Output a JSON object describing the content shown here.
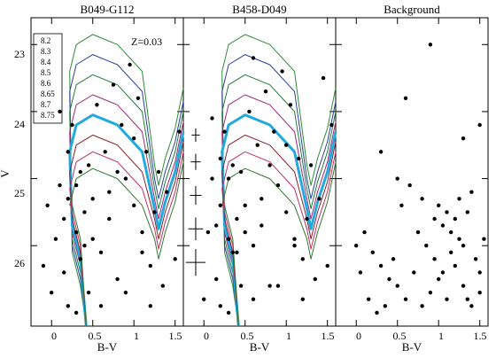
{
  "chart_data": [
    {
      "type": "scatter",
      "title": "B049-G112",
      "xlabel": "B-V",
      "ylabel": "V",
      "xlim": [
        -0.25,
        1.6
      ],
      "ylim": [
        27.2,
        22.6
      ],
      "xticks": [
        0,
        0.5,
        1,
        1.5
      ],
      "xtick_labels": [
        "0",
        "0.5",
        "1",
        "1.5"
      ],
      "yticks": [
        23,
        24,
        25,
        26
      ],
      "ytick_labels": [
        "23",
        "24",
        "25",
        "26"
      ],
      "annotation": "Z=0.03",
      "legend_title": "",
      "legend_entries": [
        "8.2",
        "8.3",
        "8.4",
        "8.5",
        "8.6",
        "8.65",
        "8.7",
        "8.75"
      ],
      "legend_position": "top-left",
      "isochrones": [
        {
          "name": "8.2",
          "color": "#2e8b3a",
          "to": 22.85,
          "rgb": 24.55,
          "red": 26.6
        },
        {
          "name": "8.3",
          "color": "#2a3f9a",
          "to": 23.15,
          "rgb": 24.75,
          "red": 26.5
        },
        {
          "name": "8.4",
          "color": "#1f7a3d",
          "to": 23.45,
          "rgb": 24.9,
          "red": 26.4
        },
        {
          "name": "8.5",
          "color": "#a0287a",
          "to": 23.75,
          "rgb": 25.05,
          "red": 26.3
        },
        {
          "name": "8.6",
          "color": "#22aadd",
          "to": 24.05,
          "rgb": 25.2,
          "red": 26.2,
          "thick": true
        },
        {
          "name": "8.65",
          "color": "#8a1f2a",
          "to": 24.35,
          "rgb": 25.35,
          "red": 26.1
        },
        {
          "name": "8.7",
          "color": "#c03060",
          "to": 24.6,
          "rgb": 25.5,
          "red": 26.0
        },
        {
          "name": "8.75",
          "color": "#2f7a2f",
          "to": 24.85,
          "rgb": 25.65,
          "red": 25.9
        }
      ],
      "points": [
        [
          0.1,
          25.1
        ],
        [
          0.2,
          24.6
        ],
        [
          0.3,
          25.8
        ],
        [
          0.35,
          26.2
        ],
        [
          0.4,
          25.5
        ],
        [
          0.15,
          26.4
        ],
        [
          0.05,
          25.9
        ],
        [
          0.45,
          24.8
        ],
        [
          0.5,
          25.3
        ],
        [
          0.6,
          26.1
        ],
        [
          0.7,
          25.6
        ],
        [
          0.8,
          26.5
        ],
        [
          0.9,
          25.0
        ],
        [
          1.0,
          24.4
        ],
        [
          1.1,
          25.8
        ],
        [
          1.2,
          26.3
        ],
        [
          1.3,
          24.9
        ],
        [
          1.4,
          25.2
        ],
        [
          0.25,
          24.2
        ],
        [
          0.35,
          24.9
        ],
        [
          0.55,
          23.9
        ],
        [
          0.65,
          24.6
        ],
        [
          0.75,
          23.6
        ],
        [
          0.85,
          24.2
        ],
        [
          0.95,
          23.3
        ],
        [
          1.05,
          23.8
        ],
        [
          1.15,
          24.6
        ],
        [
          1.25,
          25.5
        ],
        [
          0.0,
          26.7
        ],
        [
          -0.1,
          26.3
        ],
        [
          0.2,
          26.9
        ],
        [
          0.3,
          27.0
        ],
        [
          0.45,
          26.7
        ],
        [
          0.6,
          26.9
        ],
        [
          0.9,
          26.7
        ],
        [
          1.2,
          26.9
        ],
        [
          1.5,
          26.2
        ],
        [
          1.55,
          24.3
        ],
        [
          0.1,
          24.0
        ],
        [
          0.2,
          25.3
        ],
        [
          0.3,
          25.1
        ],
        [
          0.4,
          26.0
        ],
        [
          0.5,
          25.9
        ],
        [
          0.7,
          25.2
        ],
        [
          0.8,
          24.9
        ],
        [
          1.0,
          25.4
        ],
        [
          1.1,
          26.1
        ],
        [
          1.35,
          26.6
        ],
        [
          -0.05,
          25.4
        ],
        [
          0.15,
          25.6
        ]
      ]
    },
    {
      "type": "scatter",
      "title": "B458-D049",
      "xlabel": "B-V",
      "xlim": [
        -0.25,
        1.6
      ],
      "ylim": [
        27.2,
        22.6
      ],
      "xticks": [
        0,
        0.5,
        1,
        1.5
      ],
      "xtick_labels": [
        "0",
        "0.5",
        "1",
        "1.5"
      ],
      "yticks": [
        23,
        24,
        25,
        26
      ],
      "error_bars": [
        {
          "x": -0.1,
          "y": 24.35,
          "xerr": 0.05,
          "yerr": 0.1
        },
        {
          "x": -0.1,
          "y": 24.75,
          "xerr": 0.06,
          "yerr": 0.12
        },
        {
          "x": -0.1,
          "y": 25.25,
          "xerr": 0.07,
          "yerr": 0.14
        },
        {
          "x": -0.1,
          "y": 25.75,
          "xerr": 0.09,
          "yerr": 0.17
        },
        {
          "x": -0.1,
          "y": 26.25,
          "xerr": 0.12,
          "yerr": 0.2
        }
      ],
      "points": [
        [
          0.1,
          25.0
        ],
        [
          0.2,
          24.7
        ],
        [
          0.3,
          25.9
        ],
        [
          0.35,
          26.1
        ],
        [
          0.4,
          25.6
        ],
        [
          0.15,
          26.5
        ],
        [
          0.05,
          25.8
        ],
        [
          0.45,
          24.9
        ],
        [
          0.5,
          25.4
        ],
        [
          0.6,
          26.0
        ],
        [
          0.7,
          25.7
        ],
        [
          0.8,
          26.6
        ],
        [
          0.9,
          25.1
        ],
        [
          1.0,
          24.5
        ],
        [
          1.1,
          25.9
        ],
        [
          1.2,
          26.2
        ],
        [
          1.3,
          24.8
        ],
        [
          1.4,
          25.3
        ],
        [
          0.25,
          24.3
        ],
        [
          0.35,
          24.8
        ],
        [
          0.55,
          24.0
        ],
        [
          0.65,
          24.5
        ],
        [
          0.75,
          23.7
        ],
        [
          0.85,
          24.3
        ],
        [
          0.95,
          23.4
        ],
        [
          1.05,
          23.9
        ],
        [
          1.15,
          24.7
        ],
        [
          1.25,
          25.6
        ],
        [
          0.0,
          26.8
        ],
        [
          0.2,
          26.9
        ],
        [
          0.3,
          27.0
        ],
        [
          0.45,
          26.6
        ],
        [
          0.6,
          26.8
        ],
        [
          0.9,
          26.6
        ],
        [
          1.2,
          26.8
        ],
        [
          1.5,
          26.3
        ],
        [
          1.55,
          24.2
        ],
        [
          0.1,
          24.1
        ],
        [
          0.2,
          25.4
        ],
        [
          0.3,
          25.0
        ],
        [
          0.4,
          26.1
        ],
        [
          0.5,
          25.8
        ],
        [
          0.7,
          25.3
        ],
        [
          0.8,
          24.8
        ],
        [
          1.0,
          25.5
        ],
        [
          1.1,
          26.0
        ],
        [
          1.35,
          26.5
        ],
        [
          0.15,
          25.7
        ],
        [
          0.6,
          23.2
        ],
        [
          1.45,
          23.5
        ]
      ]
    },
    {
      "type": "scatter",
      "title": "Background",
      "xlabel": "B-V",
      "xlim": [
        -0.25,
        1.6
      ],
      "ylim": [
        27.2,
        22.6
      ],
      "xticks": [
        0,
        0.5,
        1,
        1.5
      ],
      "xtick_labels": [
        "0",
        "0.5",
        "1",
        "1.5"
      ],
      "yticks": [
        23,
        24,
        25,
        26
      ],
      "points": [
        [
          0.9,
          23.0
        ],
        [
          1.3,
          24.4
        ],
        [
          1.5,
          24.2
        ],
        [
          0.6,
          23.8
        ],
        [
          0.3,
          24.6
        ],
        [
          0.5,
          25.0
        ],
        [
          0.8,
          25.3
        ],
        [
          0.95,
          25.6
        ],
        [
          1.0,
          25.4
        ],
        [
          1.05,
          25.7
        ],
        [
          1.1,
          25.5
        ],
        [
          1.15,
          25.8
        ],
        [
          1.2,
          25.6
        ],
        [
          1.25,
          25.9
        ],
        [
          1.3,
          26.0
        ],
        [
          1.35,
          25.5
        ],
        [
          1.4,
          25.2
        ],
        [
          1.45,
          26.2
        ],
        [
          1.5,
          26.4
        ],
        [
          1.55,
          25.9
        ],
        [
          0.1,
          25.8
        ],
        [
          0.2,
          26.1
        ],
        [
          0.3,
          26.3
        ],
        [
          0.4,
          26.5
        ],
        [
          0.45,
          26.2
        ],
        [
          0.5,
          26.6
        ],
        [
          0.6,
          26.8
        ],
        [
          0.7,
          26.4
        ],
        [
          0.8,
          26.9
        ],
        [
          0.9,
          26.7
        ],
        [
          1.0,
          26.5
        ],
        [
          1.1,
          26.8
        ],
        [
          1.2,
          26.3
        ],
        [
          1.3,
          26.6
        ],
        [
          1.4,
          26.9
        ],
        [
          1.5,
          26.7
        ],
        [
          0.0,
          26.0
        ],
        [
          0.05,
          26.4
        ],
        [
          0.15,
          26.8
        ],
        [
          0.25,
          27.0
        ],
        [
          0.35,
          26.9
        ],
        [
          0.55,
          25.4
        ],
        [
          0.65,
          25.1
        ],
        [
          0.75,
          25.8
        ],
        [
          0.85,
          26.0
        ],
        [
          0.95,
          26.2
        ],
        [
          1.05,
          26.4
        ],
        [
          1.15,
          26.1
        ],
        [
          1.25,
          25.3
        ],
        [
          1.35,
          26.8
        ]
      ]
    }
  ]
}
